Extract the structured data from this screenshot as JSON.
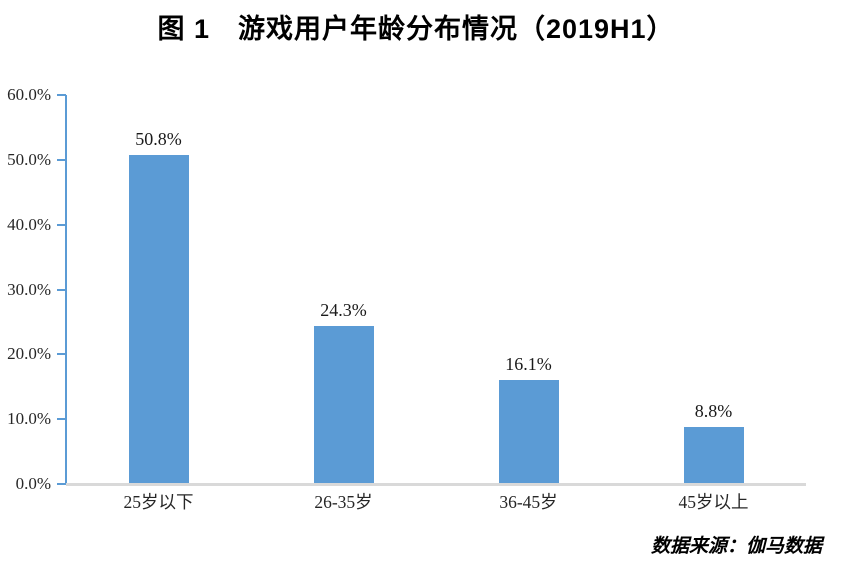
{
  "chart_data": {
    "type": "bar",
    "title": "图 1　游戏用户年龄分布情况（2019H1）",
    "categories": [
      "25岁以下",
      "26-35岁",
      "36-45岁",
      "45岁以上"
    ],
    "values": [
      50.8,
      24.3,
      16.1,
      8.8
    ],
    "value_labels": [
      "50.8%",
      "24.3%",
      "16.1%",
      "8.8%"
    ],
    "xlabel": "",
    "ylabel": "",
    "ylim": [
      0,
      60
    ],
    "y_tick_step": 10,
    "y_ticks": [
      {
        "value": 60,
        "label": "60.0%"
      },
      {
        "value": 50,
        "label": "50.0%"
      },
      {
        "value": 40,
        "label": "40.0%"
      },
      {
        "value": 30,
        "label": "30.0%"
      },
      {
        "value": 20,
        "label": "20.0%"
      },
      {
        "value": 10,
        "label": "10.0%"
      },
      {
        "value": 0,
        "label": "0.0%"
      }
    ],
    "grid": false,
    "legend_position": "none",
    "source": "数据来源：伽马数据",
    "colors": {
      "bar": "#5B9BD5",
      "axis": "#5B9BD5",
      "baseline": "#D9D9D9",
      "label_text": "#1a1a1a",
      "title_text": "#000000"
    }
  }
}
